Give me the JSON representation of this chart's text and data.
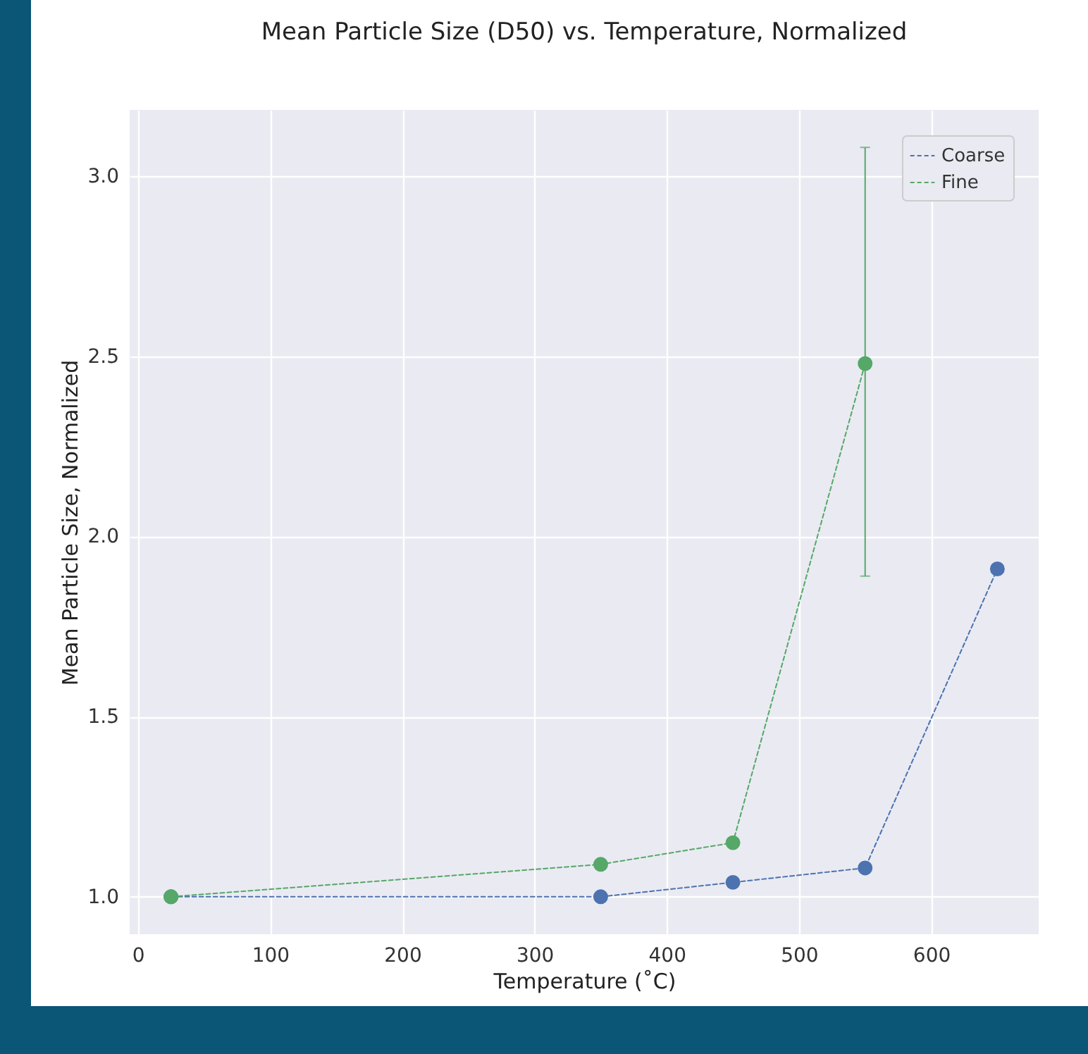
{
  "chart_data": {
    "type": "line",
    "title": "Mean Particle Size (D50) vs. Temperature, Normalized",
    "xlabel": "Temperature (˚C)",
    "ylabel": "Mean Particle Size, Normalized",
    "series": [
      {
        "name": "Coarse",
        "color": "#4c72b0",
        "x": [
          25,
          350,
          450,
          550,
          650
        ],
        "values": [
          1.0,
          1.0,
          1.04,
          1.08,
          1.91
        ]
      },
      {
        "name": "Fine",
        "color": "#55a868",
        "x": [
          25,
          350,
          450,
          550
        ],
        "values": [
          1.0,
          1.09,
          1.15,
          2.48
        ],
        "errors": [
          null,
          null,
          null,
          [
            1.89,
            3.08
          ]
        ]
      }
    ],
    "xlim": [
      -6.25,
      681.25
    ],
    "ylim": [
      0.896,
      3.184
    ],
    "xticks": [
      0,
      100,
      200,
      300,
      400,
      500,
      600
    ],
    "yticks": [
      {
        "value": 1,
        "label": "1.0"
      },
      1.5,
      {
        "value": 2,
        "label": "2.0"
      },
      2.5,
      {
        "value": 3,
        "label": "3.0"
      }
    ],
    "grid": true,
    "legend": "top right",
    "marker": "circle",
    "line_style": "dashed"
  }
}
